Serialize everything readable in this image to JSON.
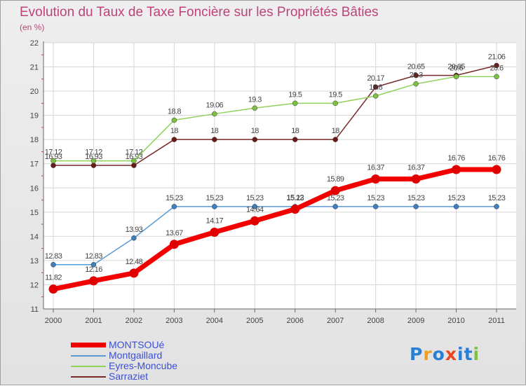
{
  "title": "Evolution du Taux de Taxe Foncière sur les Propriétés Bâties",
  "subtitle": "(en %)",
  "logo": {
    "text": "Proxiti",
    "colors": [
      "#2a7fd4",
      "#f0a020",
      "#2a7fd4",
      "#e8461e",
      "#2a7fd4",
      "#2a7fd4",
      "#7cc142"
    ]
  },
  "chart_data": {
    "type": "line",
    "title": "Evolution du Taux de Taxe Foncière sur les Propriétés Bâties",
    "ylabel": "(en %)",
    "categories": [
      "2000",
      "2001",
      "2002",
      "2003",
      "2004",
      "2005",
      "2006",
      "2007",
      "2008",
      "2009",
      "2010",
      "2011"
    ],
    "ylim": [
      11,
      22
    ],
    "yticks": [
      11,
      12,
      13,
      14,
      15,
      16,
      17,
      18,
      19,
      20,
      21,
      22
    ],
    "grid": true,
    "legend_position": "bottom-left",
    "series": [
      {
        "name": "Sarraziet",
        "color": "#7a2a2a",
        "dot": "#6b1a1a",
        "width": 1.5,
        "r": 3.5,
        "values": [
          16.93,
          16.93,
          16.93,
          18,
          18,
          18,
          18,
          18,
          20.17,
          20.65,
          20.65,
          21.06
        ],
        "labels": [
          "16.93",
          "16.93",
          "16.93",
          "18",
          "18",
          "18",
          "18",
          "18",
          "20.17",
          "20.65",
          "20.65",
          "21.06"
        ]
      },
      {
        "name": "Eyres-Moncube",
        "color": "#8fd35a",
        "dot": "#7cc142",
        "width": 1.5,
        "r": 3.5,
        "values": [
          17.12,
          17.12,
          17.12,
          18.8,
          19.06,
          19.3,
          19.5,
          19.5,
          19.8,
          20.3,
          20.6,
          20.6
        ],
        "labels": [
          "17.12",
          "17.12",
          "17.12",
          "18.8",
          "19.06",
          "19.3",
          "19.5",
          "19.5",
          "19.8",
          "20.3",
          "20.6",
          "20.6"
        ]
      },
      {
        "name": "Montgaillard",
        "color": "#5b9bd5",
        "dot": "#3f7fc0",
        "width": 1.5,
        "r": 3.5,
        "values": [
          12.83,
          12.83,
          13.93,
          15.23,
          15.23,
          15.23,
          15.23,
          15.23,
          15.23,
          15.23,
          15.23,
          15.23
        ],
        "labels": [
          "12.83",
          "12.83",
          "13.93",
          "15.23",
          "15.23",
          "15.23",
          "15.23",
          "15.23",
          "15.23",
          "15.23",
          "15.23",
          "15.23"
        ]
      },
      {
        "name": "MONTSOUé",
        "color": "#f20000",
        "dot": "#e00000",
        "width": 7,
        "r": 6.5,
        "values": [
          11.82,
          12.16,
          12.48,
          13.67,
          14.17,
          14.64,
          15.12,
          15.89,
          16.37,
          16.37,
          16.76,
          16.76
        ],
        "labels": [
          "11.82",
          "12.16",
          "12.48",
          "13.67",
          "14.17",
          "14.64",
          "15.12",
          "15.89",
          "16.37",
          "16.37",
          "16.76",
          "16.76"
        ]
      }
    ],
    "legend": [
      "MONTSOUé",
      "Montgaillard",
      "Eyres-Moncube",
      "Sarraziet"
    ]
  }
}
